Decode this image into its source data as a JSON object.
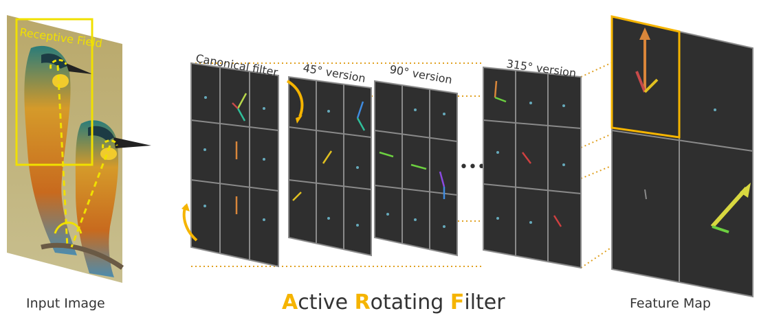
{
  "input": {
    "caption": "Input Image",
    "receptive_field_label": "Receptive Field"
  },
  "filters": [
    {
      "label": "Canonical filter"
    },
    {
      "label": "45° version"
    },
    {
      "label": "90° version"
    },
    {
      "label": "315° version"
    }
  ],
  "ellipsis": "•••",
  "title": {
    "a1": "A",
    "r1": "ctive ",
    "a2": "R",
    "r2": "otating ",
    "a3": "F",
    "r3": "ilter"
  },
  "feature_map": {
    "caption": "Feature Map"
  },
  "colors": {
    "accent": "#f5b400",
    "dotted": "#e0a020",
    "panel": "#2f2f2f",
    "grid": "#808080",
    "receptive_box": "#f0e000"
  }
}
